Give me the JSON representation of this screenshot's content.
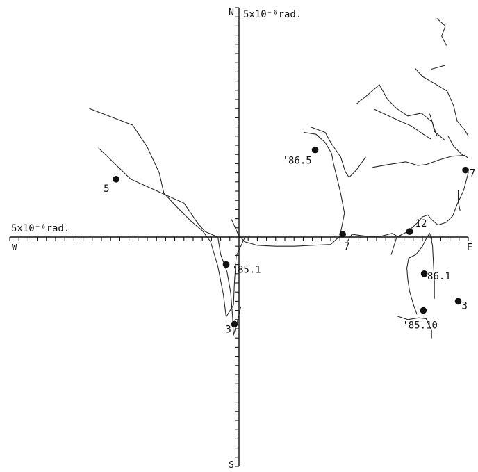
{
  "chart_data": {
    "type": "line",
    "title": "",
    "axes": {
      "north_label": "N",
      "south_label": "S",
      "east_label": "E",
      "west_label": "W",
      "vertical_scale_label": "5x10⁻⁶rad.",
      "horizontal_scale_label": "5x10⁻⁶rad.",
      "xlim": [
        -25,
        25
      ],
      "ylim": [
        -25,
        25
      ],
      "tick_step": 1
    },
    "series": [
      {
        "points": [
          [
            -16.3,
            14.0
          ],
          [
            -11.6,
            12.2
          ],
          [
            -10.0,
            9.8
          ],
          [
            -8.7,
            7.0
          ],
          [
            -8.2,
            4.8
          ],
          [
            -6.8,
            3.3
          ],
          [
            -5.2,
            1.7
          ],
          [
            -4.0,
            0.7
          ],
          [
            -3.1,
            -0.5
          ],
          [
            -2.3,
            -3.2
          ],
          [
            -1.7,
            -6.3
          ],
          [
            -1.4,
            -8.7
          ],
          [
            -0.6,
            -7.4
          ],
          [
            -0.5,
            -5.0
          ],
          [
            -0.3,
            -2.1
          ],
          [
            0.2,
            -1.0
          ],
          [
            0.7,
            0.1
          ]
        ]
      },
      {
        "points": [
          [
            -15.3,
            9.7
          ],
          [
            -11.8,
            6.3
          ],
          [
            -8.9,
            5.0
          ],
          [
            -6.0,
            3.7
          ],
          [
            -4.5,
            1.5
          ],
          [
            -3.7,
            0.6
          ],
          [
            -2.3,
            0.0
          ],
          [
            -2.0,
            -1.9
          ],
          [
            -1.3,
            -3.8
          ],
          [
            -0.9,
            -6.1
          ],
          [
            -0.7,
            -8.7
          ],
          [
            -0.6,
            -10.7
          ],
          [
            -0.2,
            -9.3
          ],
          [
            0.2,
            -7.6
          ]
        ]
      },
      {
        "points": [
          [
            -0.8,
            1.9
          ],
          [
            -0.1,
            0.3
          ],
          [
            0.6,
            -0.5
          ],
          [
            2.0,
            -0.9
          ],
          [
            4.0,
            -1.0
          ],
          [
            6.0,
            -1.0
          ],
          [
            8.0,
            -0.9
          ],
          [
            10.0,
            -0.8
          ],
          [
            11.0,
            0.1
          ],
          [
            11.5,
            2.6
          ],
          [
            11.1,
            4.7
          ],
          [
            10.7,
            6.4
          ],
          [
            10.3,
            8.0
          ],
          [
            10.1,
            9.1
          ],
          [
            9.4,
            10.3
          ],
          [
            8.4,
            11.2
          ],
          [
            7.1,
            11.4
          ]
        ]
      },
      {
        "points": [
          [
            11.8,
            -0.5
          ],
          [
            12.3,
            0.3
          ],
          [
            13.8,
            0.1
          ],
          [
            15.5,
            0.1
          ],
          [
            16.7,
            0.4
          ],
          [
            17.4,
            0.0
          ]
        ]
      },
      {
        "points": [
          [
            16.6,
            -1.9
          ],
          [
            17.2,
            0.0
          ],
          [
            18.4,
            0.6
          ],
          [
            19.4,
            1.5
          ],
          [
            20.0,
            2.2
          ],
          [
            20.6,
            2.4
          ],
          [
            21.0,
            1.9
          ],
          [
            21.7,
            1.3
          ],
          [
            22.6,
            1.6
          ],
          [
            23.3,
            2.3
          ],
          [
            23.8,
            3.6
          ],
          [
            24.5,
            5.1
          ],
          [
            25.0,
            7.0
          ]
        ]
      },
      {
        "points": [
          [
            19.4,
            -8.4
          ],
          [
            19.0,
            -7.3
          ],
          [
            18.6,
            -5.9
          ],
          [
            18.4,
            -4.6
          ],
          [
            18.3,
            -3.4
          ],
          [
            18.5,
            -2.3
          ],
          [
            19.3,
            -1.9
          ],
          [
            20.0,
            -1.0
          ],
          [
            20.5,
            0.0
          ],
          [
            20.8,
            0.4
          ],
          [
            21.1,
            -0.9
          ],
          [
            21.2,
            -2.8
          ],
          [
            21.3,
            -4.8
          ],
          [
            21.3,
            -6.7
          ]
        ]
      },
      {
        "points": [
          [
            17.2,
            -8.6
          ],
          [
            18.4,
            -9.0
          ],
          [
            19.6,
            -8.8
          ],
          [
            20.4,
            -8.9
          ],
          [
            21.0,
            -10.2
          ],
          [
            21.0,
            -11.0
          ]
        ]
      },
      {
        "points": [
          [
            7.8,
            12.0
          ],
          [
            9.4,
            11.4
          ],
          [
            10.0,
            10.3
          ],
          [
            11.1,
            8.7
          ],
          [
            11.6,
            7.1
          ],
          [
            12.0,
            6.5
          ],
          [
            12.8,
            7.3
          ],
          [
            13.8,
            8.7
          ]
        ]
      },
      {
        "points": [
          [
            14.6,
            7.6
          ],
          [
            16.3,
            7.9
          ],
          [
            18.2,
            8.2
          ],
          [
            19.5,
            7.8
          ],
          [
            20.4,
            7.9
          ],
          [
            21.8,
            8.4
          ],
          [
            23.2,
            8.8
          ],
          [
            24.6,
            8.9
          ],
          [
            25.0,
            8.6
          ]
        ]
      },
      {
        "points": [
          [
            12.8,
            14.5
          ],
          [
            13.8,
            15.3
          ],
          [
            15.3,
            16.6
          ],
          [
            16.2,
            15.0
          ],
          [
            17.2,
            14.0
          ],
          [
            18.4,
            13.2
          ],
          [
            19.9,
            13.5
          ],
          [
            21.1,
            12.5
          ],
          [
            21.3,
            11.5
          ],
          [
            22.4,
            10.6
          ]
        ]
      },
      {
        "points": [
          [
            19.2,
            18.4
          ],
          [
            20.0,
            17.5
          ],
          [
            21.2,
            16.8
          ],
          [
            22.7,
            15.9
          ],
          [
            23.4,
            14.3
          ],
          [
            23.8,
            12.6
          ],
          [
            24.6,
            11.7
          ],
          [
            25.0,
            11.0
          ]
        ]
      },
      {
        "points": [
          [
            14.8,
            13.9
          ],
          [
            16.1,
            13.3
          ],
          [
            17.4,
            12.7
          ],
          [
            18.8,
            12.1
          ],
          [
            20.1,
            11.2
          ],
          [
            20.9,
            10.7
          ]
        ]
      },
      {
        "points": [
          [
            22.8,
            11.0
          ],
          [
            23.4,
            9.9
          ],
          [
            24.4,
            8.9
          ]
        ]
      },
      {
        "points": [
          [
            23.9,
            5.1
          ],
          [
            23.9,
            3.9
          ],
          [
            24.1,
            2.9
          ]
        ]
      },
      {
        "points": [
          [
            20.8,
            13.4
          ],
          [
            21.2,
            12.1
          ],
          [
            21.6,
            11.0
          ]
        ]
      },
      {
        "points": [
          [
            21.6,
            23.8
          ],
          [
            22.5,
            23.0
          ],
          [
            22.1,
            21.9
          ],
          [
            22.6,
            20.9
          ]
        ]
      },
      {
        "points": [
          [
            21.0,
            18.3
          ],
          [
            22.4,
            18.7
          ]
        ]
      }
    ],
    "annotations": [
      {
        "label": "5",
        "x": -13.4,
        "y": 6.3
      },
      {
        "label": "'85.1",
        "x": -1.4,
        "y": -3.0
      },
      {
        "label": "3",
        "x": -0.5,
        "y": -9.5
      },
      {
        "label": "'86.5",
        "x": 8.3,
        "y": 9.5
      },
      {
        "label": "7",
        "x": 11.3,
        "y": 0.3
      },
      {
        "label": "12",
        "x": 18.6,
        "y": 0.6
      },
      {
        "label": "'86.1",
        "x": 20.2,
        "y": -4.0
      },
      {
        "label": "3",
        "x": 23.9,
        "y": -7.0
      },
      {
        "label": "'85.10",
        "x": 20.1,
        "y": -8.0
      },
      {
        "label": "7",
        "x": 24.7,
        "y": 7.3
      }
    ],
    "grid": false,
    "legend": "none"
  }
}
